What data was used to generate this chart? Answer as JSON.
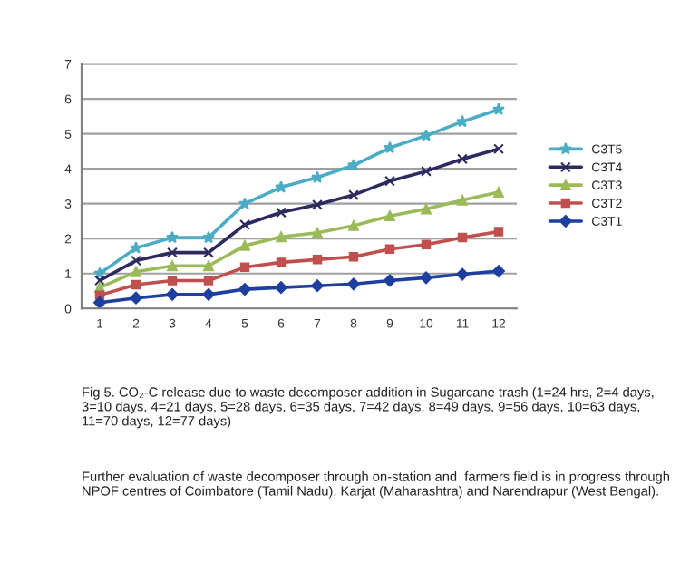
{
  "chart_data": {
    "type": "line",
    "categories": [
      "1",
      "2",
      "3",
      "4",
      "5",
      "6",
      "7",
      "8",
      "9",
      "10",
      "11",
      "12"
    ],
    "series": [
      {
        "name": "C3T5",
        "color": "#4bacc6",
        "marker": "star",
        "values": [
          1.0,
          1.73,
          2.03,
          2.03,
          3.0,
          3.47,
          3.75,
          4.1,
          4.6,
          4.95,
          5.35,
          5.7
        ]
      },
      {
        "name": "C3T4",
        "color": "#2c2a5e",
        "marker": "cross",
        "values": [
          0.8,
          1.37,
          1.6,
          1.6,
          2.4,
          2.75,
          2.97,
          3.25,
          3.65,
          3.93,
          4.28,
          4.57
        ]
      },
      {
        "name": "C3T3",
        "color": "#9bbb59",
        "marker": "triangle",
        "values": [
          0.6,
          1.05,
          1.22,
          1.22,
          1.8,
          2.05,
          2.17,
          2.37,
          2.65,
          2.85,
          3.1,
          3.33
        ]
      },
      {
        "name": "C3T2",
        "color": "#c0504d",
        "marker": "square",
        "values": [
          0.38,
          0.68,
          0.8,
          0.8,
          1.18,
          1.32,
          1.4,
          1.48,
          1.7,
          1.83,
          2.03,
          2.2
        ]
      },
      {
        "name": "C3T1",
        "color": "#1f3fa0",
        "marker": "diamond",
        "values": [
          0.17,
          0.3,
          0.4,
          0.4,
          0.55,
          0.6,
          0.65,
          0.7,
          0.8,
          0.88,
          0.98,
          1.07
        ]
      }
    ],
    "ylim": [
      0,
      7
    ],
    "yticks": [
      0,
      1,
      2,
      3,
      4,
      5,
      6,
      7
    ],
    "grid": "y",
    "legend": "right",
    "annotations": [
      "Fig 5. CO₂-C release due to waste decomposer addition in Sugarcane trash (1=24 hrs, 2=4 days, 3=10 days, 4=21 days, 5=28 days, 6=35 days, 7=42 days, 8=49 days, 9=56 days, 10=63 days, 11=70 days, 12=77 days)",
      "Further evaluation of waste decomposer through on-station and  farmers field is in progress through NPOF centres of Coimbatore (Tamil Nadu), Karjat (Maharashtra) and Narendrapur (West Bengal)."
    ]
  }
}
